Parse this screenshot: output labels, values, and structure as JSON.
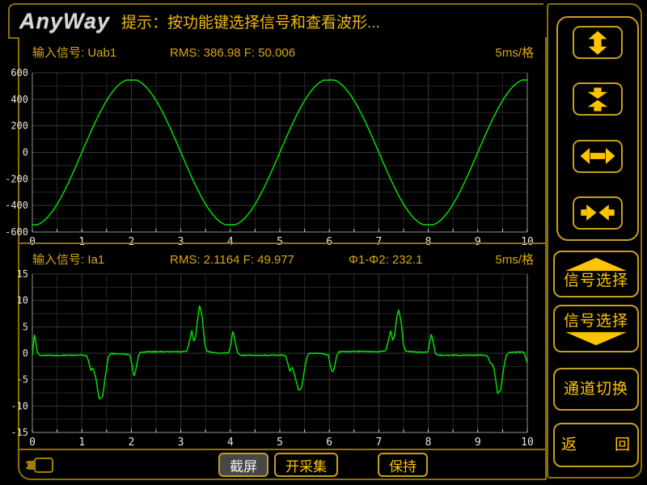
{
  "title_bar": {
    "logo_text": "AnyWay",
    "prompt": "提示：按功能键选择信号和查看波形..."
  },
  "sidebar": {
    "zoom_buttons": [
      {
        "icon": "expand-vertical-icon"
      },
      {
        "icon": "compress-vertical-icon"
      },
      {
        "icon": "expand-horizontal-icon"
      },
      {
        "icon": "compress-horizontal-icon"
      }
    ],
    "signal_select_up_label": "信号选择",
    "signal_select_down_label": "信号选择",
    "channel_switch_label": "通道切换",
    "return_left_char": "返",
    "return_right_char": "回"
  },
  "bottom_bar": {
    "battery_icon": "battery-icon",
    "screenshot_label": "截屏",
    "start_capture_label": "开采集",
    "hold_label": "保持"
  },
  "chart_data": [
    {
      "type": "line",
      "signal": "Uab1",
      "header": {
        "signal_label": "输入信号: Uab1",
        "stats": "RMS: 386.98 F: 50.006",
        "timebase": "5ms/格"
      },
      "rms": 386.98,
      "frequency_hz": 50.006,
      "time_per_div": "5ms",
      "xlim": [
        0,
        10
      ],
      "ylim": [
        -600,
        600
      ],
      "x_ticks": [
        0,
        1,
        2,
        3,
        4,
        5,
        6,
        7,
        8,
        9,
        10
      ],
      "y_ticks": [
        -600,
        -400,
        -200,
        0,
        200,
        400,
        600
      ],
      "x_minor_step": 0.5,
      "y_minor_step": 100,
      "line_color": "#00dd00",
      "waveform": {
        "shape": "sine",
        "amplitude": 552,
        "clip": 545,
        "period_div": 4,
        "zero_up_crossings_x": [
          1,
          5,
          9
        ],
        "peaks_x": [
          2,
          6,
          10
        ],
        "troughs_x": [
          4,
          8
        ]
      }
    },
    {
      "type": "line",
      "signal": "Ia1",
      "header": {
        "signal_label": "输入信号: Ia1",
        "stats": "RMS: 2.1164 F: 49.977",
        "phase": "Φ1-Φ2: 232.1",
        "timebase": "5ms/格"
      },
      "rms": 2.1164,
      "frequency_hz": 49.977,
      "phase_diff_deg": 232.1,
      "time_per_div": "5ms",
      "xlim": [
        0,
        10
      ],
      "ylim": [
        -15,
        15
      ],
      "x_ticks": [
        0,
        1,
        2,
        3,
        4,
        5,
        6,
        7,
        8,
        9,
        10
      ],
      "y_ticks": [
        -15,
        -10,
        -5,
        0,
        5,
        10,
        15
      ],
      "x_minor_step": 0.5,
      "y_minor_step": 2.5,
      "line_color": "#00dd00",
      "waveform": {
        "shape": "points",
        "points": [
          [
            0,
            -0.3
          ],
          [
            0.02,
            1.5
          ],
          [
            0.04,
            3.7
          ],
          [
            0.07,
            2.0
          ],
          [
            0.1,
            0.2
          ],
          [
            0.15,
            -0.4
          ],
          [
            0.5,
            -0.4
          ],
          [
            1.0,
            -0.35
          ],
          [
            1.1,
            -0.5
          ],
          [
            1.15,
            -2.0
          ],
          [
            1.18,
            -3.3
          ],
          [
            1.22,
            -2.8
          ],
          [
            1.28,
            -4.5
          ],
          [
            1.35,
            -8.7
          ],
          [
            1.42,
            -8.2
          ],
          [
            1.48,
            -4.0
          ],
          [
            1.53,
            -0.8
          ],
          [
            1.58,
            -0.1
          ],
          [
            1.8,
            -0.1
          ],
          [
            1.97,
            -0.3
          ],
          [
            2.02,
            -2.5
          ],
          [
            2.05,
            -4.4
          ],
          [
            2.09,
            -3.2
          ],
          [
            2.14,
            -0.6
          ],
          [
            2.18,
            0.2
          ],
          [
            2.5,
            0.3
          ],
          [
            3.0,
            0.3
          ],
          [
            3.12,
            0.4
          ],
          [
            3.18,
            2.5
          ],
          [
            3.22,
            4.4
          ],
          [
            3.26,
            2.2
          ],
          [
            3.3,
            3.2
          ],
          [
            3.34,
            6.5
          ],
          [
            3.38,
            9.1
          ],
          [
            3.43,
            7.0
          ],
          [
            3.48,
            2.0
          ],
          [
            3.52,
            0.4
          ],
          [
            3.6,
            0.2
          ],
          [
            3.8,
            0.0
          ],
          [
            3.97,
            0.1
          ],
          [
            4.02,
            2.2
          ],
          [
            4.05,
            4.3
          ],
          [
            4.09,
            2.6
          ],
          [
            4.14,
            0.2
          ],
          [
            4.2,
            -0.4
          ],
          [
            4.6,
            -0.4
          ],
          [
            5.05,
            -0.35
          ],
          [
            5.12,
            -0.5
          ],
          [
            5.17,
            -2.2
          ],
          [
            5.2,
            -3.4
          ],
          [
            5.25,
            -2.6
          ],
          [
            5.3,
            -4.2
          ],
          [
            5.38,
            -7.0
          ],
          [
            5.44,
            -6.6
          ],
          [
            5.5,
            -3.0
          ],
          [
            5.55,
            -0.6
          ],
          [
            5.6,
            0.0
          ],
          [
            5.8,
            0.0
          ],
          [
            5.98,
            -0.3
          ],
          [
            6.02,
            -2.4
          ],
          [
            6.06,
            -3.6
          ],
          [
            6.1,
            -2.8
          ],
          [
            6.15,
            -0.5
          ],
          [
            6.2,
            0.3
          ],
          [
            6.6,
            0.35
          ],
          [
            7.0,
            0.3
          ],
          [
            7.14,
            0.5
          ],
          [
            7.2,
            2.6
          ],
          [
            7.24,
            4.4
          ],
          [
            7.28,
            2.4
          ],
          [
            7.32,
            3.4
          ],
          [
            7.36,
            6.8
          ],
          [
            7.4,
            8.2
          ],
          [
            7.45,
            6.0
          ],
          [
            7.5,
            1.5
          ],
          [
            7.54,
            0.4
          ],
          [
            7.7,
            0.3
          ],
          [
            7.9,
            0.2
          ],
          [
            7.99,
            0.3
          ],
          [
            8.03,
            2.2
          ],
          [
            8.06,
            3.7
          ],
          [
            8.1,
            2.0
          ],
          [
            8.14,
            0.0
          ],
          [
            8.2,
            -0.4
          ],
          [
            8.6,
            -0.4
          ],
          [
            9.1,
            -0.35
          ],
          [
            9.2,
            -0.6
          ],
          [
            9.25,
            -1.8
          ],
          [
            9.29,
            -2.1
          ],
          [
            9.33,
            -3.0
          ],
          [
            9.4,
            -7.6
          ],
          [
            9.46,
            -7.0
          ],
          [
            9.52,
            -3.0
          ],
          [
            9.57,
            -0.5
          ],
          [
            9.62,
            0.1
          ],
          [
            9.8,
            0.25
          ],
          [
            9.93,
            0.2
          ],
          [
            10,
            -1.8
          ]
        ]
      }
    }
  ]
}
